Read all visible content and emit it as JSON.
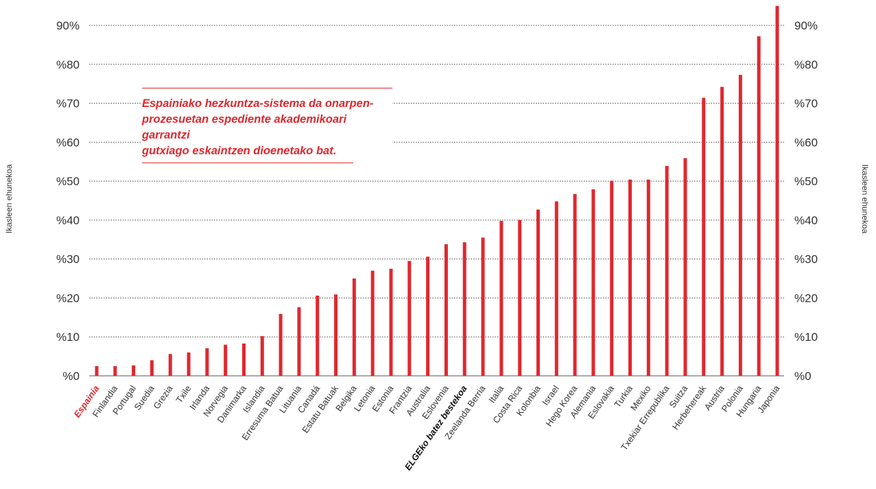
{
  "chart_data": {
    "type": "bar",
    "ylabel_left": "Ikasleen ehunekoa",
    "ylabel_right": "Ikasleen ehunekoa",
    "ylim": [
      0,
      95
    ],
    "grid": true,
    "y_ticks": [
      {
        "value": 0,
        "label": "%0"
      },
      {
        "value": 10,
        "label": "%10"
      },
      {
        "value": 20,
        "label": "%20"
      },
      {
        "value": 30,
        "label": "%30"
      },
      {
        "value": 40,
        "label": "%40"
      },
      {
        "value": 50,
        "label": "%50"
      },
      {
        "value": 60,
        "label": "%60"
      },
      {
        "value": 70,
        "label": "%70"
      },
      {
        "value": 80,
        "label": "%80"
      },
      {
        "value": 90,
        "label": "90%"
      }
    ],
    "categories": [
      "Espainia",
      "Finlandia",
      "Portugal",
      "Suedia",
      "Grezia",
      "Txile",
      "Irlanda",
      "Norvegia",
      "Danimarka",
      "Islandia",
      "Erresuma Batua",
      "Lituania",
      "Canadá",
      "Estatu Batuak",
      "Belgika",
      "Letonia",
      "Estonia",
      "Frantzia",
      "Australia",
      "Eslovenia",
      "ELGEko batez bestekoa",
      "Zeelanda Berria",
      "Italia",
      "Costa Rica",
      "Kolonbia",
      "Israel",
      "Hego Korea",
      "Alemania",
      "Eslovakia",
      "Turkia",
      "Mexiko",
      "Txekiar Errepublika",
      "Suitza",
      "Herbehereak",
      "Austria",
      "Polonia",
      "Hungaria",
      "Japonia"
    ],
    "values": [
      2.5,
      2.5,
      2.7,
      4.0,
      5.6,
      6.0,
      7.1,
      8.0,
      8.3,
      10.2,
      15.9,
      17.6,
      20.6,
      20.9,
      25.0,
      27.0,
      27.5,
      29.5,
      30.6,
      33.8,
      34.3,
      35.5,
      39.8,
      40.0,
      42.7,
      44.8,
      46.7,
      47.9,
      50.1,
      50.4,
      50.4,
      53.9,
      55.9,
      71.4,
      74.2,
      77.3,
      87.2,
      95.0
    ],
    "highlight_red": [
      "Espainia"
    ],
    "highlight_black": [
      "ELGEko batez bestekoa"
    ],
    "annotation": "Espainiako hezkuntza-sistema da onarpen-prozesuetan espediente akademikoari garrantzi gutxiago eskaintzen dioenetako bat.",
    "annotation_lines": [
      "Espainiako hezkuntza-sistema da onarpen-",
      "prozesuetan espediente akademikoari garrantzi",
      "gutxiago eskaintzen dioenetako bat."
    ],
    "colors": {
      "bar": "#e0282e",
      "grid": "#444444",
      "highlight_red": "#e0282e",
      "highlight_black": "#111111"
    }
  }
}
